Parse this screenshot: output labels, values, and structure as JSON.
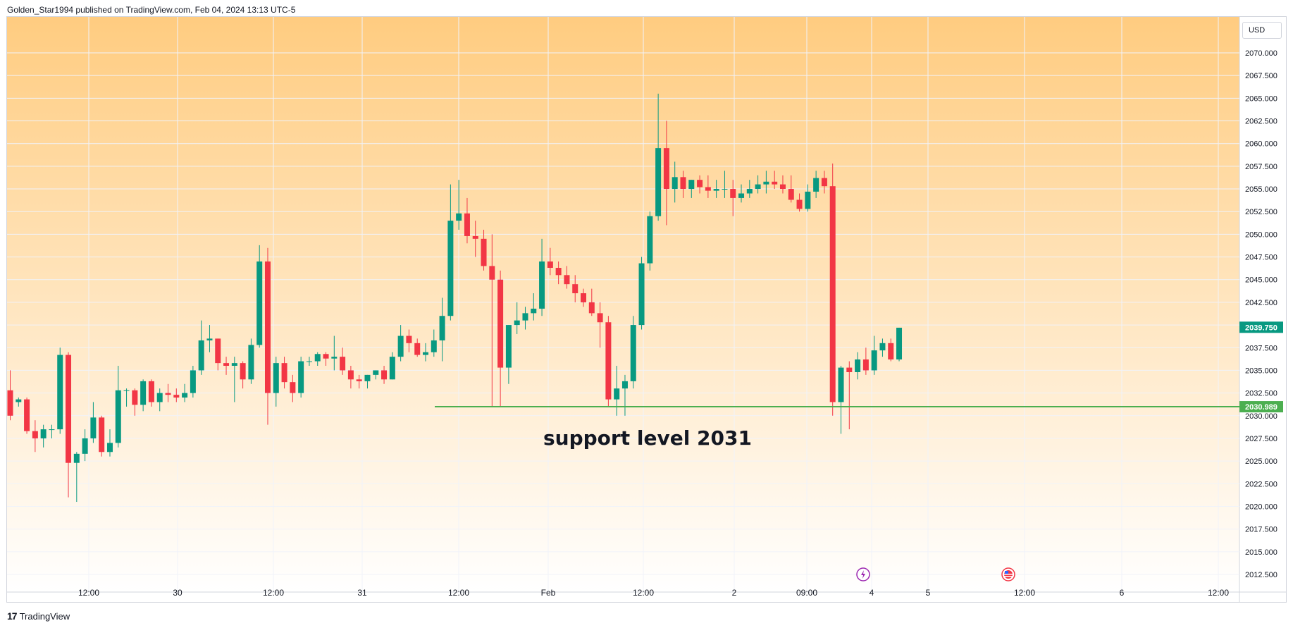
{
  "header": {
    "published_line": "Golden_Star1994 published on TradingView.com, Feb 04, 2024 13:13 UTC-5"
  },
  "currency_button": "USD",
  "footer": {
    "brand": "TradingView",
    "logo_glyph": "17"
  },
  "colors": {
    "up": "#089981",
    "down": "#f23645",
    "support": "#4caf50",
    "grid": "#f0f3fa",
    "bg_top": "#ffcc80",
    "bg_bottom": "#ffffff",
    "event_icon": "#9c27b0"
  },
  "chart_data": {
    "type": "candlestick",
    "ylim": [
      2010.75,
      2072.5
    ],
    "y_ticks": [
      "2070.000",
      "2067.500",
      "2065.000",
      "2062.500",
      "2060.000",
      "2057.500",
      "2055.000",
      "2052.500",
      "2050.000",
      "2047.500",
      "2045.000",
      "2042.500",
      "2040.000",
      "2037.500",
      "2035.000",
      "2032.500",
      "2030.000",
      "2027.500",
      "2025.000",
      "2022.500",
      "2020.000",
      "2017.500",
      "2015.000",
      "2012.500"
    ],
    "x_ticks": [
      "12:00",
      "30",
      "12:00",
      "31",
      "12:00",
      "Feb",
      "12:00",
      "2",
      "09:00",
      "4",
      "5",
      "12:00",
      "6",
      "12:00"
    ],
    "last_price": {
      "label": "2039.750",
      "value": 2039.75
    },
    "support": {
      "label": "2030.989",
      "value": 2030.989,
      "annotation": "support level 2031"
    },
    "candles": [
      [
        2032.8,
        2035.0,
        2029.5,
        2030.0
      ],
      [
        2031.5,
        2032.0,
        2031.0,
        2031.8
      ],
      [
        2031.8,
        2032.0,
        2028.0,
        2028.3
      ],
      [
        2028.3,
        2029.5,
        2026.0,
        2027.5
      ],
      [
        2027.5,
        2029.0,
        2026.5,
        2028.5
      ],
      [
        2028.5,
        2029.0,
        2027.5,
        2028.5
      ],
      [
        2028.5,
        2037.5,
        2028.0,
        2036.7
      ],
      [
        2036.7,
        2037.0,
        2021.0,
        2024.8
      ],
      [
        2024.8,
        2026.0,
        2020.5,
        2025.8
      ],
      [
        2025.8,
        2028.5,
        2025.0,
        2027.5
      ],
      [
        2027.5,
        2031.5,
        2027.0,
        2029.8
      ],
      [
        2029.8,
        2030.0,
        2025.5,
        2026.0
      ],
      [
        2026.0,
        2028.5,
        2025.5,
        2027.0
      ],
      [
        2027.0,
        2035.5,
        2026.5,
        2032.8
      ],
      [
        2032.8,
        2033.0,
        2031.0,
        2032.8
      ],
      [
        2032.8,
        2033.0,
        2030.0,
        2031.2
      ],
      [
        2031.2,
        2034.0,
        2030.5,
        2033.8
      ],
      [
        2033.8,
        2034.0,
        2031.0,
        2031.5
      ],
      [
        2031.5,
        2033.0,
        2030.5,
        2032.5
      ],
      [
        2032.5,
        2033.5,
        2031.5,
        2032.3
      ],
      [
        2032.3,
        2033.0,
        2031.5,
        2032.0
      ],
      [
        2032.0,
        2033.5,
        2031.5,
        2032.5
      ],
      [
        2032.5,
        2035.5,
        2032.0,
        2035.0
      ],
      [
        2035.0,
        2040.5,
        2034.5,
        2038.3
      ],
      [
        2038.3,
        2040.0,
        2037.0,
        2038.5
      ],
      [
        2038.5,
        2038.5,
        2035.0,
        2035.8
      ],
      [
        2035.8,
        2036.5,
        2034.5,
        2035.5
      ],
      [
        2035.5,
        2036.5,
        2031.5,
        2035.8
      ],
      [
        2035.8,
        2036.0,
        2033.0,
        2034.0
      ],
      [
        2034.0,
        2038.5,
        2033.5,
        2037.8
      ],
      [
        2037.8,
        2048.8,
        2037.5,
        2047.0
      ],
      [
        2047.0,
        2048.5,
        2029.0,
        2032.5
      ],
      [
        2032.5,
        2036.5,
        2031.0,
        2035.8
      ],
      [
        2035.8,
        2036.5,
        2033.0,
        2033.7
      ],
      [
        2033.7,
        2034.5,
        2031.5,
        2032.5
      ],
      [
        2032.5,
        2036.5,
        2032.0,
        2036.0
      ],
      [
        2036.0,
        2036.5,
        2035.5,
        2036.0
      ],
      [
        2036.0,
        2037.0,
        2035.5,
        2036.8
      ],
      [
        2036.8,
        2037.0,
        2035.5,
        2036.3
      ],
      [
        2036.3,
        2038.8,
        2035.0,
        2036.5
      ],
      [
        2036.5,
        2037.5,
        2034.5,
        2035.0
      ],
      [
        2035.0,
        2035.5,
        2033.0,
        2034.0
      ],
      [
        2034.0,
        2034.5,
        2033.0,
        2033.8
      ],
      [
        2033.8,
        2034.5,
        2033.0,
        2034.5
      ],
      [
        2034.5,
        2035.0,
        2034.0,
        2035.0
      ],
      [
        2035.0,
        2035.5,
        2033.5,
        2034.0
      ],
      [
        2034.0,
        2037.0,
        2034.0,
        2036.5
      ],
      [
        2036.5,
        2040.0,
        2036.0,
        2038.8
      ],
      [
        2038.8,
        2039.5,
        2037.0,
        2038.0
      ],
      [
        2038.0,
        2038.5,
        2036.5,
        2036.7
      ],
      [
        2036.7,
        2038.0,
        2036.0,
        2037.0
      ],
      [
        2037.0,
        2039.5,
        2036.5,
        2038.3
      ],
      [
        2038.3,
        2043.0,
        2036.0,
        2041.0
      ],
      [
        2041.0,
        2055.5,
        2040.5,
        2051.5
      ],
      [
        2051.5,
        2056.0,
        2050.5,
        2052.3
      ],
      [
        2052.3,
        2054.0,
        2049.0,
        2049.8
      ],
      [
        2049.8,
        2051.5,
        2047.5,
        2049.5
      ],
      [
        2049.5,
        2050.5,
        2046.0,
        2046.5
      ],
      [
        2046.5,
        2050.0,
        2031.0,
        2045.0
      ],
      [
        2045.0,
        2046.0,
        2031.0,
        2035.3
      ],
      [
        2035.3,
        2040.0,
        2033.5,
        2040.0
      ],
      [
        2040.0,
        2042.5,
        2039.0,
        2040.5
      ],
      [
        2040.5,
        2042.0,
        2039.5,
        2041.3
      ],
      [
        2041.3,
        2043.5,
        2040.5,
        2041.8
      ],
      [
        2041.8,
        2049.5,
        2041.0,
        2047.0
      ],
      [
        2047.0,
        2048.5,
        2045.5,
        2046.3
      ],
      [
        2046.3,
        2047.0,
        2044.5,
        2045.5
      ],
      [
        2045.5,
        2046.5,
        2044.0,
        2044.5
      ],
      [
        2044.5,
        2045.5,
        2042.5,
        2043.5
      ],
      [
        2043.5,
        2044.0,
        2042.0,
        2042.5
      ],
      [
        2042.5,
        2044.0,
        2041.0,
        2041.3
      ],
      [
        2041.3,
        2042.5,
        2037.5,
        2040.3
      ],
      [
        2040.3,
        2041.0,
        2031.0,
        2031.8
      ],
      [
        2031.8,
        2035.5,
        2030.0,
        2033.0
      ],
      [
        2033.0,
        2034.5,
        2030.0,
        2033.8
      ],
      [
        2033.8,
        2041.0,
        2033.0,
        2040.0
      ],
      [
        2040.0,
        2047.5,
        2039.5,
        2046.8
      ],
      [
        2046.8,
        2052.5,
        2046.0,
        2052.0
      ],
      [
        2052.0,
        2065.5,
        2051.5,
        2059.5
      ],
      [
        2059.5,
        2062.5,
        2051.0,
        2055.0
      ],
      [
        2055.0,
        2058.0,
        2053.5,
        2056.3
      ],
      [
        2056.3,
        2057.0,
        2054.0,
        2055.0
      ],
      [
        2055.0,
        2056.0,
        2054.0,
        2056.0
      ],
      [
        2056.0,
        2056.5,
        2054.5,
        2055.2
      ],
      [
        2055.2,
        2056.5,
        2054.0,
        2054.8
      ],
      [
        2054.8,
        2056.0,
        2054.0,
        2055.0
      ],
      [
        2055.0,
        2057.0,
        2054.0,
        2055.0
      ],
      [
        2055.0,
        2056.0,
        2052.0,
        2054.0
      ],
      [
        2054.0,
        2055.5,
        2053.5,
        2054.5
      ],
      [
        2054.5,
        2056.0,
        2054.0,
        2055.0
      ],
      [
        2055.0,
        2056.5,
        2054.5,
        2055.5
      ],
      [
        2055.5,
        2057.0,
        2054.5,
        2055.8
      ],
      [
        2055.8,
        2057.0,
        2055.0,
        2055.5
      ],
      [
        2055.5,
        2056.5,
        2054.5,
        2055.0
      ],
      [
        2055.0,
        2056.5,
        2053.5,
        2053.8
      ],
      [
        2053.8,
        2054.5,
        2052.5,
        2052.8
      ],
      [
        2052.8,
        2055.5,
        2052.5,
        2054.7
      ],
      [
        2054.7,
        2057.0,
        2054.0,
        2056.2
      ],
      [
        2056.2,
        2057.0,
        2054.5,
        2055.3
      ],
      [
        2055.3,
        2057.8,
        2030.0,
        2031.5
      ],
      [
        2031.5,
        2035.5,
        2028.0,
        2035.3
      ],
      [
        2035.3,
        2036.0,
        2028.5,
        2034.8
      ],
      [
        2034.8,
        2037.0,
        2034.0,
        2036.2
      ],
      [
        2036.2,
        2037.5,
        2034.5,
        2035.0
      ],
      [
        2035.0,
        2038.8,
        2034.5,
        2037.2
      ],
      [
        2037.2,
        2038.5,
        2036.5,
        2038.0
      ],
      [
        2038.0,
        2038.5,
        2036.0,
        2036.2
      ],
      [
        2036.2,
        2039.7,
        2036.0,
        2039.7
      ]
    ]
  }
}
